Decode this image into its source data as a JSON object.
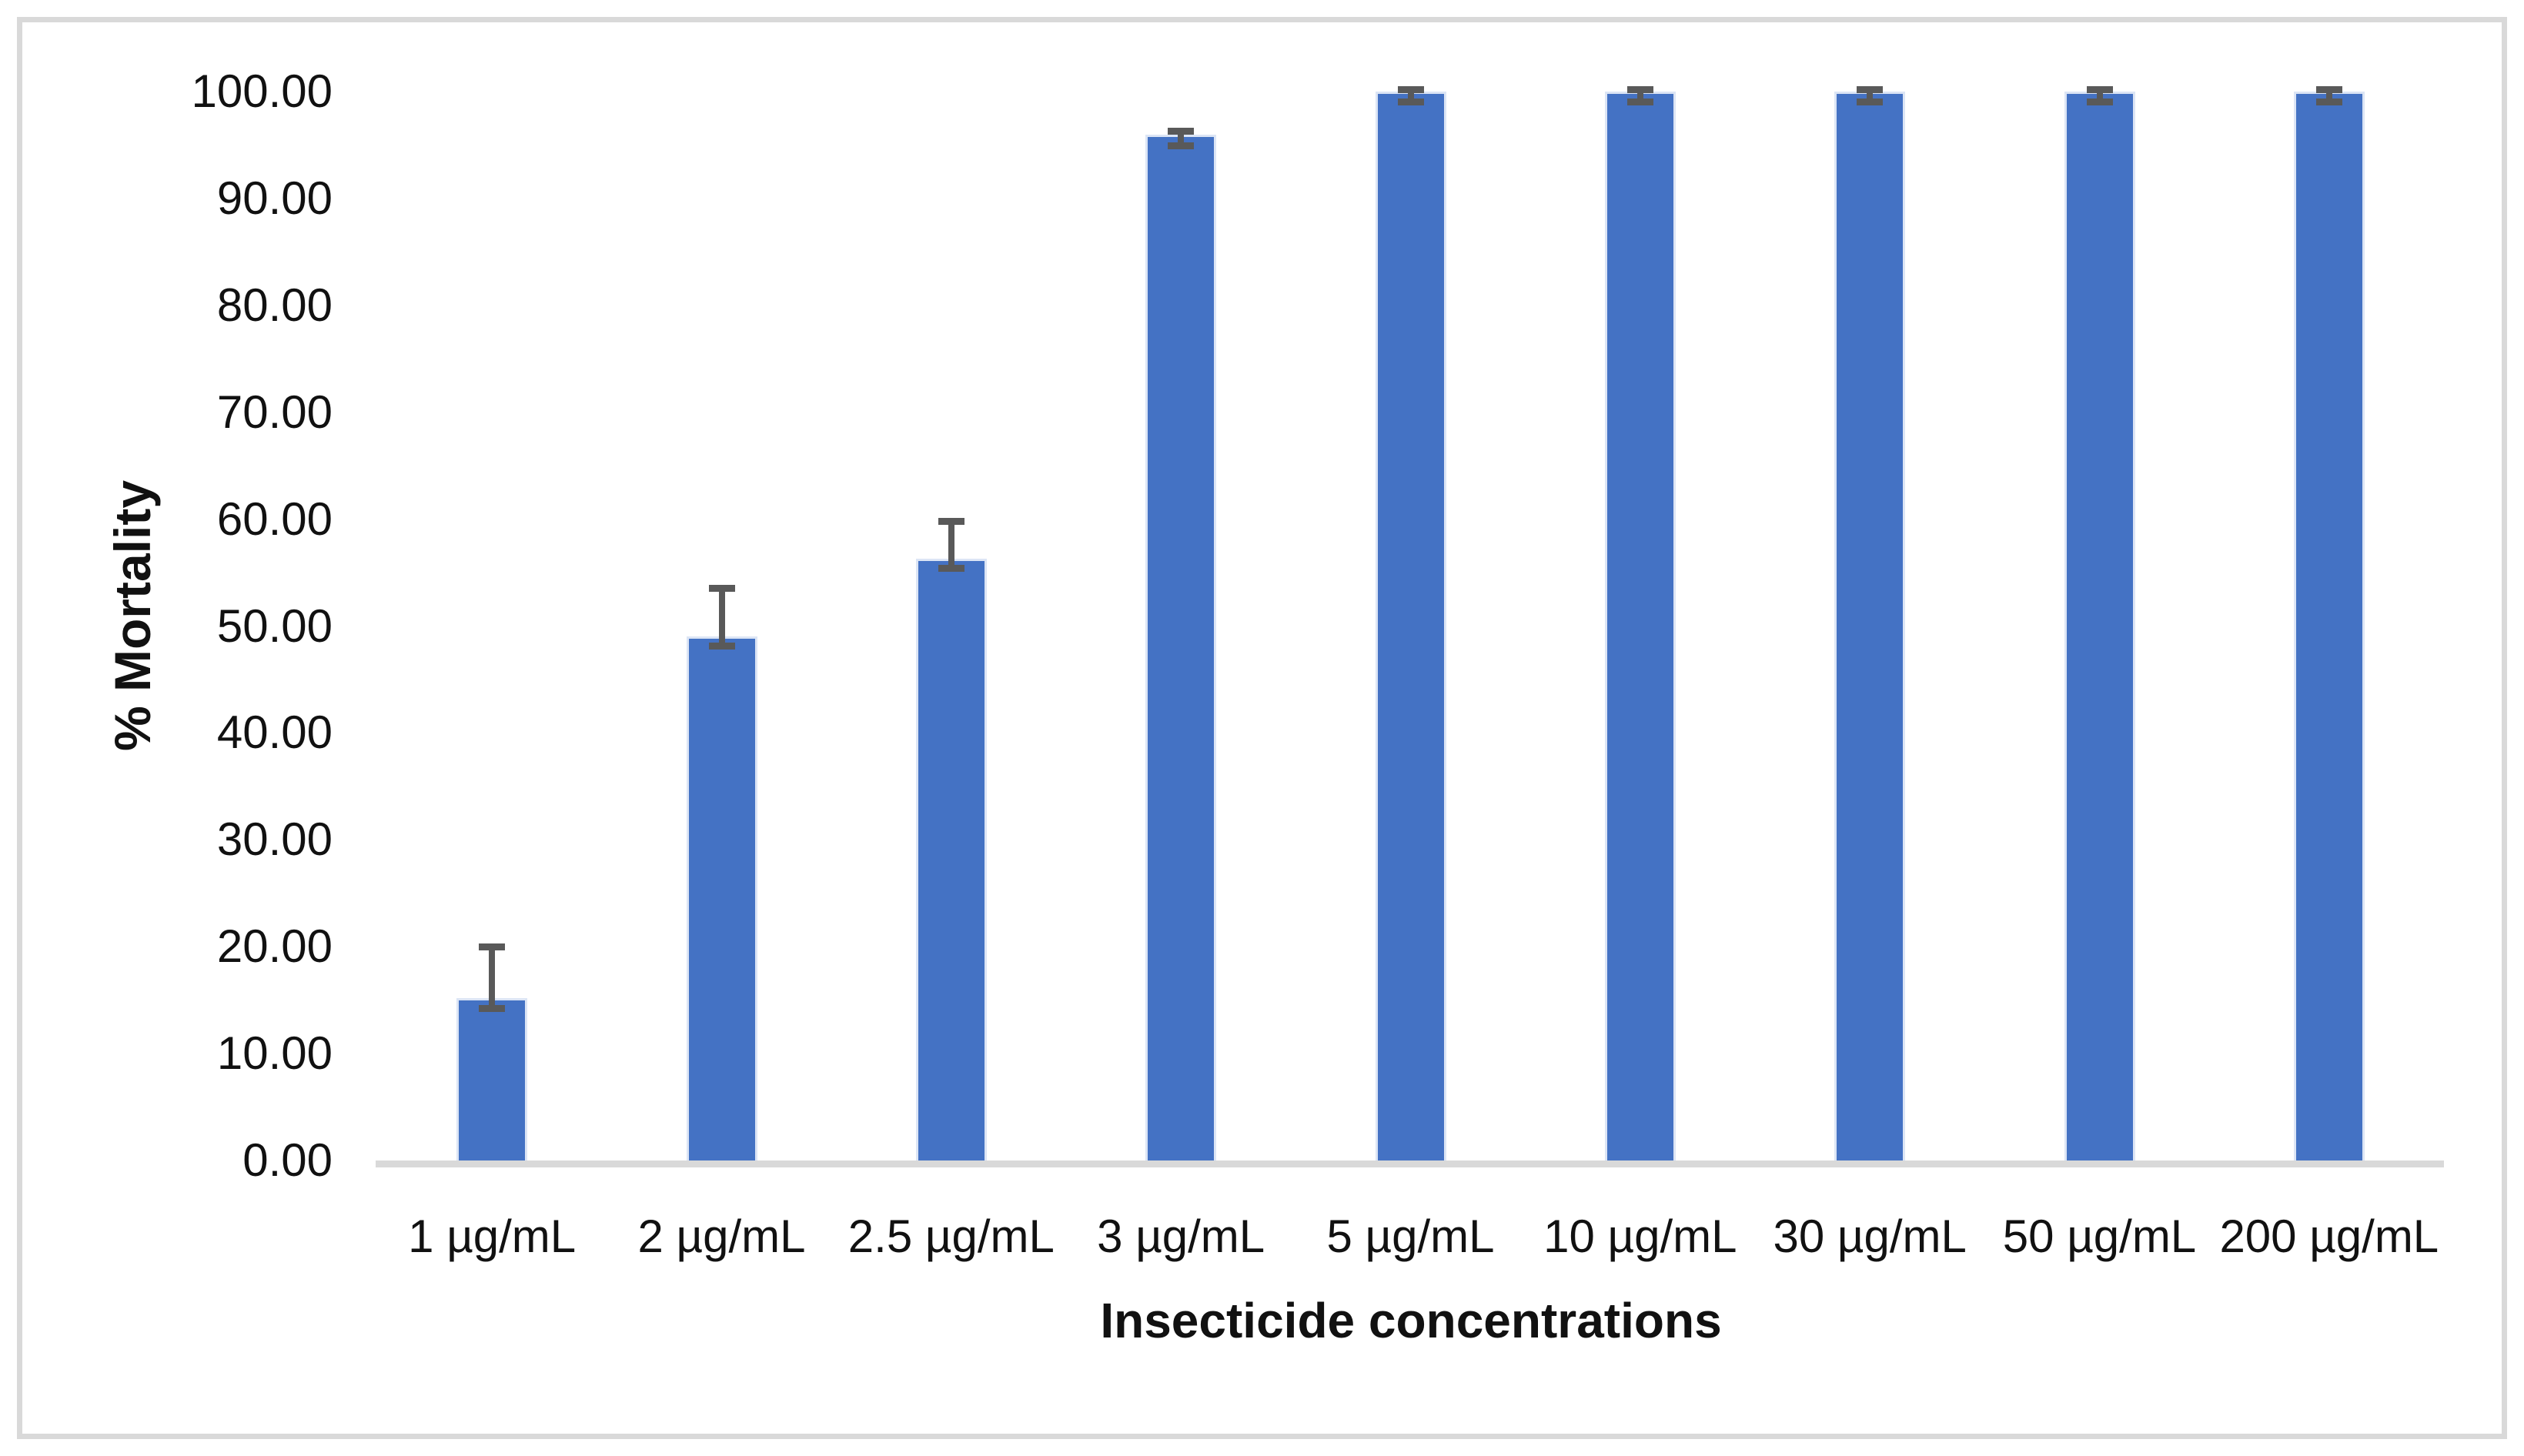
{
  "chart_data": {
    "type": "bar",
    "title": "",
    "xlabel": "Insecticide concentrations",
    "ylabel": "% Mortality",
    "categories": [
      "1 µg/mL",
      "2 µg/mL",
      "2.5 µg/mL",
      "3 µg/mL",
      "5 µg/mL",
      "10 µg/mL",
      "30 µg/mL",
      "50 µg/mL",
      "200 µg/mL"
    ],
    "series": [
      {
        "name": "% Mortality",
        "values": [
          15.2,
          49.0,
          56.3,
          96.0,
          100.0,
          100.0,
          100.0,
          100.0,
          100.0
        ],
        "error_low": [
          14.2,
          48.1,
          55.4,
          94.9,
          99.0,
          99.0,
          99.0,
          99.0,
          99.0
        ],
        "error_high": [
          20.0,
          53.5,
          59.8,
          96.3,
          100.2,
          100.2,
          100.2,
          100.2,
          100.2
        ]
      }
    ],
    "ylim": [
      0,
      100
    ],
    "ytick_step": 10,
    "yticks": [
      "0.00",
      "10.00",
      "20.00",
      "30.00",
      "40.00",
      "50.00",
      "60.00",
      "70.00",
      "80.00",
      "90.00",
      "100.00"
    ],
    "grid": "off",
    "legend": "none",
    "bar_color": "#4472C4",
    "bar_edge_color": "#dce5f5",
    "error_color": "#595959",
    "axis_line_color": "#d9d9d9",
    "text_color": "#111111",
    "frame_color": "#d9d9d9",
    "background_color": "#ffffff"
  }
}
